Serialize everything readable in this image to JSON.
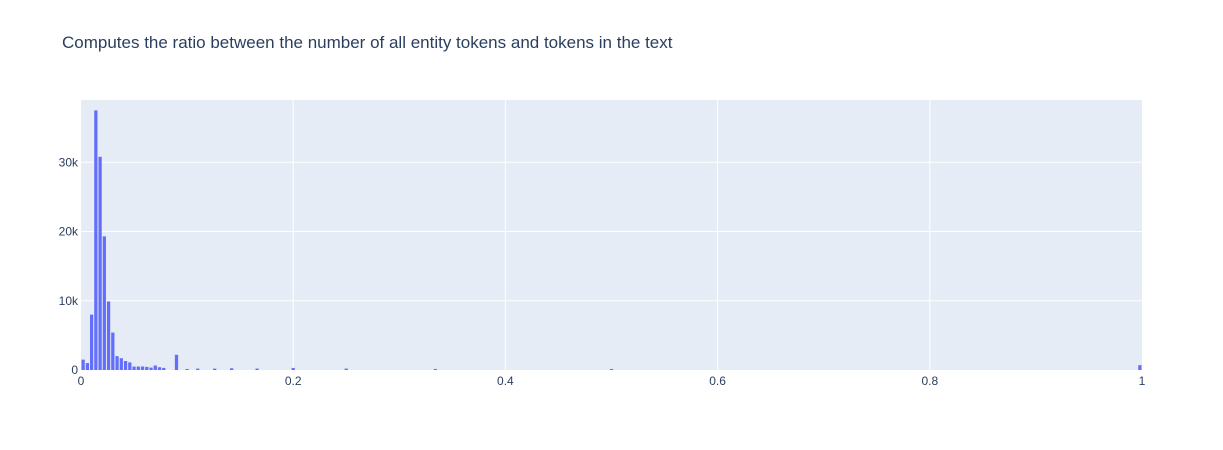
{
  "chart_data": {
    "type": "bar",
    "title": "Computes the ratio between the number of all entity tokens and tokens in the text",
    "xlabel": "",
    "ylabel": "",
    "xlim": [
      0,
      1
    ],
    "ylim": [
      0,
      39000
    ],
    "grid": true,
    "bar_color": "#636efa",
    "plot_bg": "#e5ecf6",
    "x_ticks": [
      {
        "value": 0,
        "label": "0"
      },
      {
        "value": 0.2,
        "label": "0.2"
      },
      {
        "value": 0.4,
        "label": "0.4"
      },
      {
        "value": 0.6,
        "label": "0.6"
      },
      {
        "value": 0.8,
        "label": "0.8"
      },
      {
        "value": 1,
        "label": "1"
      }
    ],
    "y_ticks": [
      {
        "value": 0,
        "label": "0"
      },
      {
        "value": 10000,
        "label": "10k"
      },
      {
        "value": 20000,
        "label": "20k"
      },
      {
        "value": 30000,
        "label": "30k"
      }
    ],
    "bin_width": 0.004,
    "x": [
      0.002,
      0.006,
      0.01,
      0.014,
      0.018,
      0.022,
      0.026,
      0.03,
      0.034,
      0.038,
      0.042,
      0.046,
      0.05,
      0.054,
      0.058,
      0.062,
      0.066,
      0.07,
      0.074,
      0.078,
      0.09,
      0.1,
      0.11,
      0.126,
      0.142,
      0.166,
      0.2,
      0.25,
      0.334,
      0.5,
      0.998
    ],
    "values": [
      1500,
      1000,
      8000,
      37500,
      30800,
      19300,
      9900,
      5400,
      2000,
      1700,
      1300,
      1100,
      500,
      500,
      500,
      450,
      350,
      650,
      400,
      300,
      2200,
      150,
      200,
      200,
      250,
      200,
      300,
      200,
      150,
      150,
      700
    ]
  }
}
